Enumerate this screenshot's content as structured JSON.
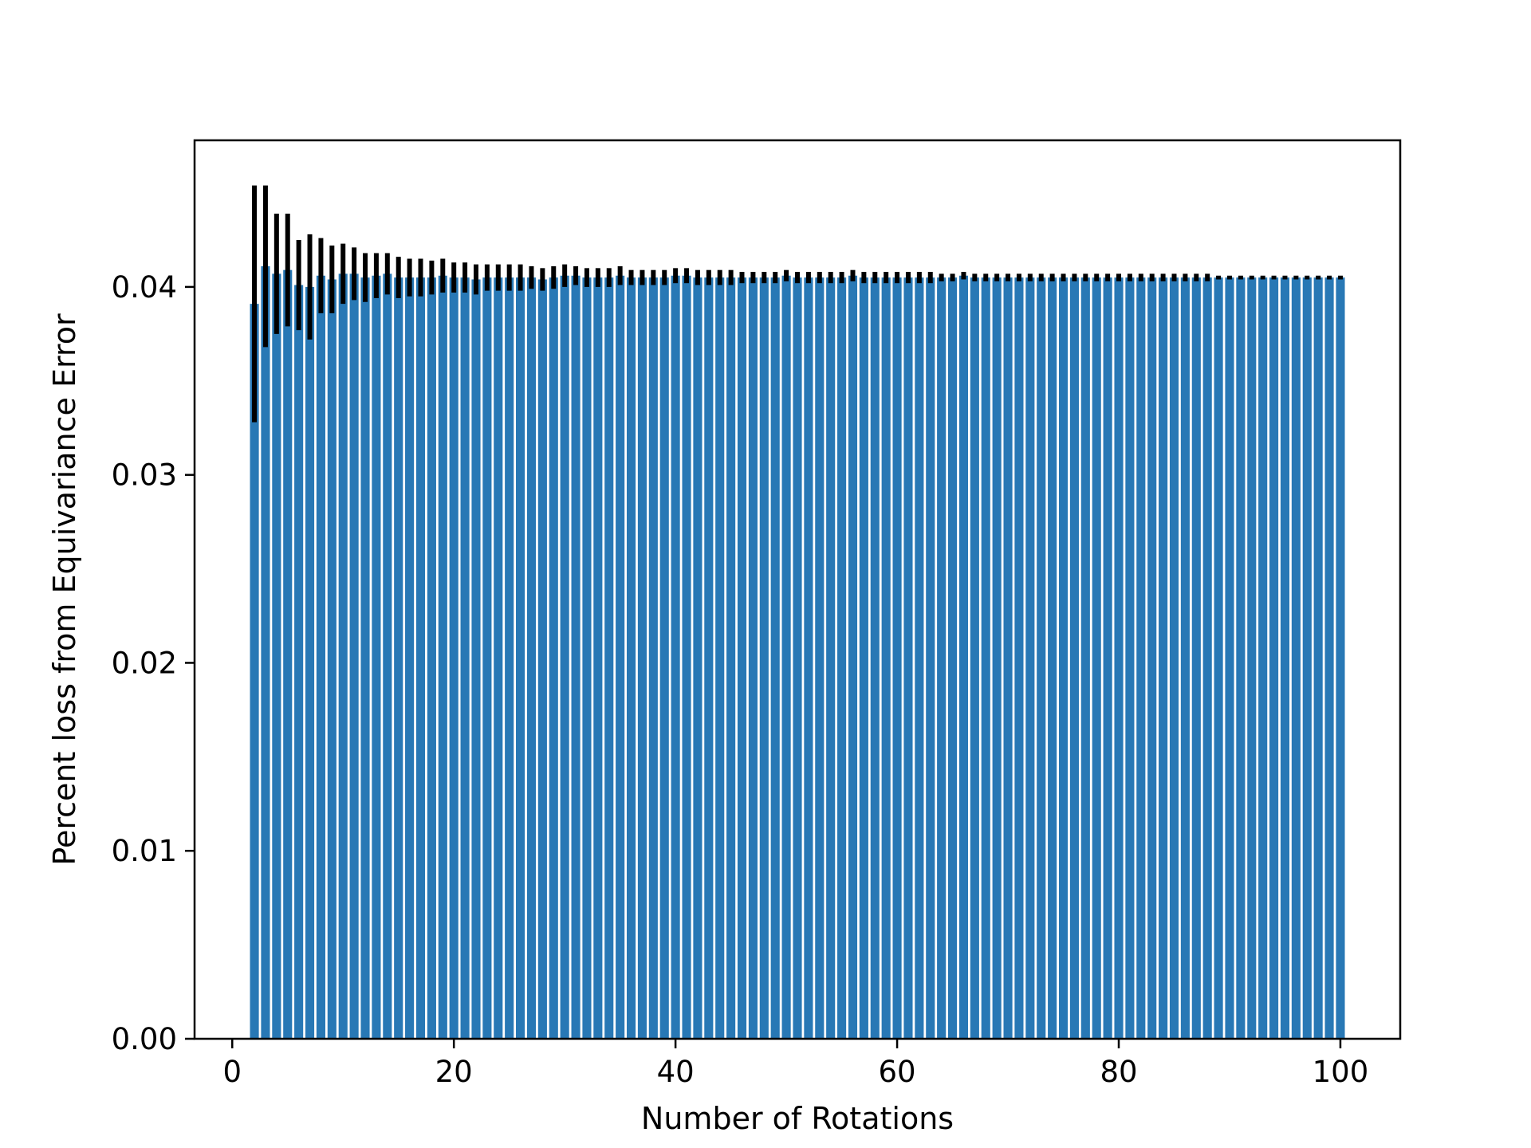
{
  "chart_data": {
    "type": "bar",
    "title": "",
    "xlabel": "Number of Rotations",
    "ylabel": "Percent loss from Equivariance Error",
    "xlim": [
      -3.4,
      105.4
    ],
    "ylim": [
      0,
      0.0478
    ],
    "x_ticks": [
      0,
      20,
      40,
      60,
      80,
      100
    ],
    "x_tick_labels": [
      "0",
      "20",
      "40",
      "60",
      "80",
      "100"
    ],
    "y_ticks": [
      0,
      0.01,
      0.02,
      0.03,
      0.04
    ],
    "y_tick_labels": [
      "0.00",
      "0.01",
      "0.02",
      "0.03",
      "0.04"
    ],
    "grid": false,
    "legend": "none",
    "bar_color": "#2878b5",
    "error_color": "#000000",
    "x": [
      2,
      3,
      4,
      5,
      6,
      7,
      8,
      9,
      10,
      11,
      12,
      13,
      14,
      15,
      16,
      17,
      18,
      19,
      20,
      21,
      22,
      23,
      24,
      25,
      26,
      27,
      28,
      29,
      30,
      31,
      32,
      33,
      34,
      35,
      36,
      37,
      38,
      39,
      40,
      41,
      42,
      43,
      44,
      45,
      46,
      47,
      48,
      49,
      50,
      51,
      52,
      53,
      54,
      55,
      56,
      57,
      58,
      59,
      60,
      61,
      62,
      63,
      64,
      65,
      66,
      67,
      68,
      69,
      70,
      71,
      72,
      73,
      74,
      75,
      76,
      77,
      78,
      79,
      80,
      81,
      82,
      83,
      84,
      85,
      86,
      87,
      88,
      89,
      90,
      91,
      92,
      93,
      94,
      95,
      96,
      97,
      98,
      99,
      100
    ],
    "values": [
      0.0391,
      0.0411,
      0.0407,
      0.0409,
      0.0401,
      0.04,
      0.0406,
      0.0404,
      0.0407,
      0.0407,
      0.0405,
      0.0406,
      0.0407,
      0.0405,
      0.0405,
      0.0405,
      0.0405,
      0.0406,
      0.0405,
      0.0405,
      0.0404,
      0.0405,
      0.0405,
      0.0405,
      0.0405,
      0.0405,
      0.0404,
      0.0405,
      0.0406,
      0.0406,
      0.0405,
      0.0405,
      0.0405,
      0.0406,
      0.0405,
      0.0405,
      0.0405,
      0.0405,
      0.0406,
      0.0406,
      0.0405,
      0.0405,
      0.0405,
      0.0405,
      0.0405,
      0.0405,
      0.0405,
      0.0405,
      0.0406,
      0.0405,
      0.0405,
      0.0405,
      0.0405,
      0.0405,
      0.0406,
      0.0405,
      0.0405,
      0.0405,
      0.0405,
      0.0405,
      0.0405,
      0.0405,
      0.0405,
      0.0405,
      0.0406,
      0.0405,
      0.0405,
      0.0405,
      0.0405,
      0.0405,
      0.0405,
      0.0405,
      0.0405,
      0.0405,
      0.0405,
      0.0405,
      0.0405,
      0.0405,
      0.0405,
      0.0405,
      0.0405,
      0.0405,
      0.0405,
      0.0405,
      0.0405,
      0.0405,
      0.0405,
      0.0405,
      0.0405,
      0.0405,
      0.0405,
      0.0405,
      0.0405,
      0.0405,
      0.0405,
      0.0405,
      0.0405,
      0.0405,
      0.0405
    ],
    "errors": [
      0.0063,
      0.0043,
      0.0032,
      0.003,
      0.0024,
      0.0028,
      0.002,
      0.0018,
      0.0016,
      0.0014,
      0.0013,
      0.0012,
      0.0011,
      0.0011,
      0.001,
      0.001,
      0.0009,
      0.0009,
      0.0008,
      0.0008,
      0.0008,
      0.0007,
      0.0007,
      0.0007,
      0.0007,
      0.0006,
      0.0006,
      0.0006,
      0.0006,
      0.0005,
      0.0005,
      0.0005,
      0.0005,
      0.0005,
      0.0004,
      0.0004,
      0.0004,
      0.0004,
      0.0004,
      0.0004,
      0.0004,
      0.0004,
      0.0004,
      0.0004,
      0.0003,
      0.0003,
      0.0003,
      0.0003,
      0.0003,
      0.0003,
      0.0003,
      0.0003,
      0.0003,
      0.0003,
      0.0003,
      0.0003,
      0.0003,
      0.0003,
      0.0003,
      0.0003,
      0.0003,
      0.0003,
      0.0002,
      0.0002,
      0.0002,
      0.0002,
      0.0002,
      0.0002,
      0.0002,
      0.0002,
      0.0002,
      0.0002,
      0.0002,
      0.0002,
      0.0002,
      0.0002,
      0.0002,
      0.0002,
      0.0002,
      0.0002,
      0.0002,
      0.0002,
      0.0002,
      0.0002,
      0.0002,
      0.0002,
      0.0002,
      0.0001,
      0.0001,
      0.0001,
      0.0001,
      0.0001,
      0.0001,
      0.0001,
      0.0001,
      0.0001,
      0.0001,
      0.0001,
      0.0001
    ]
  }
}
